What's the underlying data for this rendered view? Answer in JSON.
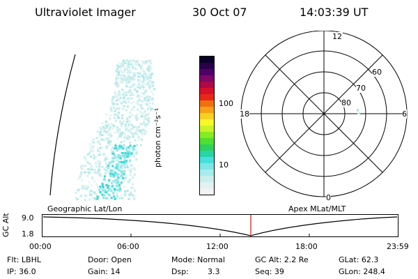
{
  "header": {
    "instrument": "Ultraviolet Imager",
    "date": "30 Oct 07",
    "time": "14:03:39 UT"
  },
  "colorbar": {
    "units_label": "photon cm⁻²s⁻¹",
    "tick_labels": [
      "100",
      "10"
    ],
    "colors": [
      "#f2f2f2",
      "#e0f2f2",
      "#c9eeee",
      "#a6ecec",
      "#7de6e6",
      "#49dede",
      "#28d4a8",
      "#2ed060",
      "#4ee030",
      "#86ec20",
      "#c8f426",
      "#f8f828",
      "#f8d020",
      "#f8a018",
      "#f07010",
      "#e82818",
      "#d8102a",
      "#b00848",
      "#800868",
      "#500068",
      "#28004a",
      "#0a0028"
    ],
    "scale": "log"
  },
  "polar": {
    "mlt_labels": [
      "12",
      "18",
      "6",
      "0"
    ],
    "lat_labels": [
      "60",
      "70",
      "80"
    ]
  },
  "timeline": {
    "left_title": "Geographic Lat/Lon",
    "right_title": "Apex MLat/MLT",
    "y_axis_label": "GC Alt",
    "y_ticks": [
      "9.0",
      "1.8"
    ],
    "x_ticks": [
      "00:00",
      "06:00",
      "12:00",
      "18:00",
      "23:59"
    ],
    "current_time_marker": "14:03",
    "marker_color": "#d01010"
  },
  "status": {
    "flt": "Flt: LBHL",
    "door": "Door: Open",
    "mode": "Mode: Normal",
    "gc_alt": "GC Alt: 2.2 Re",
    "glat": "GLat:  62.3",
    "ip": "IP: 36.0",
    "gain": "Gain: 14",
    "dsp_label": "Dsp:",
    "dsp_value": "3.3",
    "seq": "Seq: 39",
    "glon": "GLon: 248.4"
  }
}
